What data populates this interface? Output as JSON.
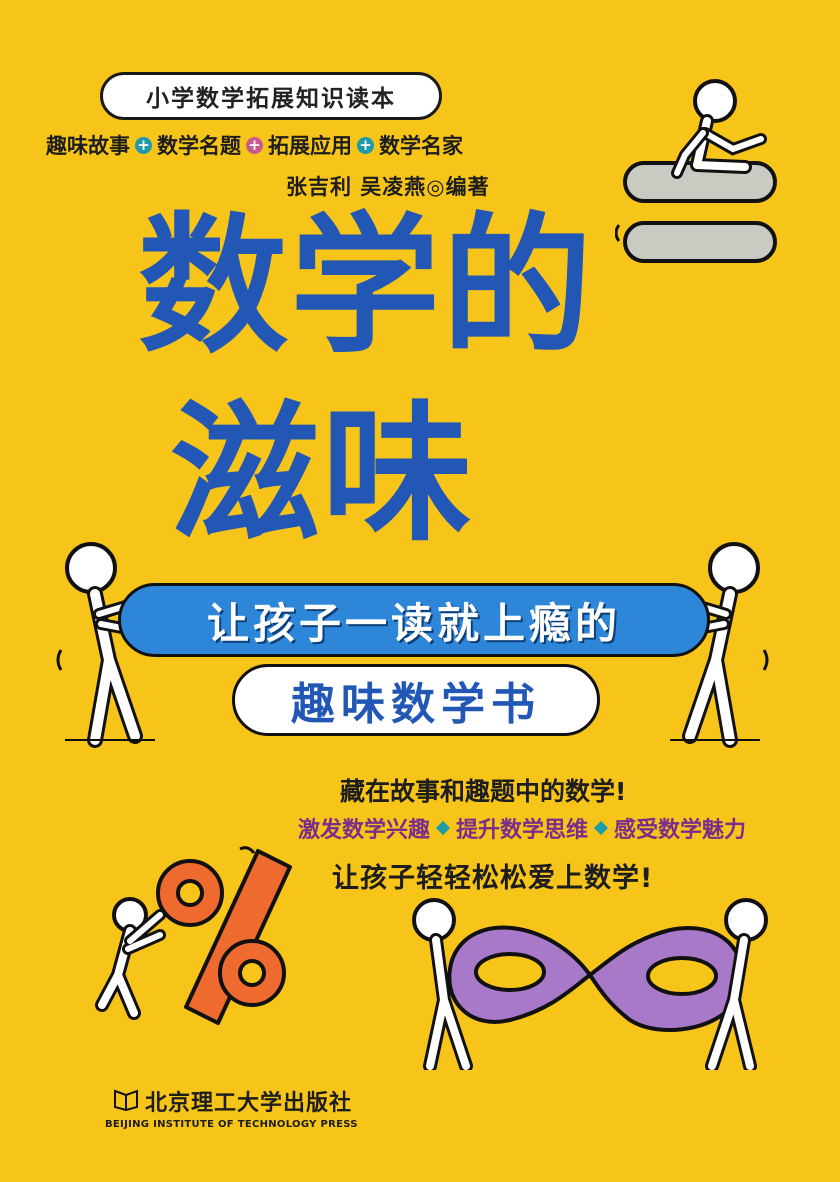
{
  "series": "小学数学拓展知识读本",
  "tagline": [
    "趣味故事",
    "数学名题",
    "拓展应用",
    "数学名家"
  ],
  "authors": "张吉利  吴凌燕◎编著",
  "title": [
    "数学的",
    "滋味"
  ],
  "banner": "让孩子一读就上瘾的",
  "subtitle": "趣味数学书",
  "blurb": {
    "line1": "藏在故事和趣题中的数学!",
    "points": [
      "激发数学兴趣",
      "提升数学思维",
      "感受数学魅力"
    ],
    "line3": "让孩子轻轻松松爱上数学!"
  },
  "publisher": {
    "cn": "北京理工大学出版社",
    "en": "BEIJING INSTITUTE OF TECHNOLOGY PRESS"
  },
  "colors": {
    "background": "#f7c51a",
    "title_blue": "#2257b5",
    "banner_blue": "#2d86d8",
    "percent_orange": "#ee6a2e",
    "infinity_purple": "#a879c8",
    "plus_teal": "#1f9aa8",
    "plus_pink": "#c85a8e"
  }
}
